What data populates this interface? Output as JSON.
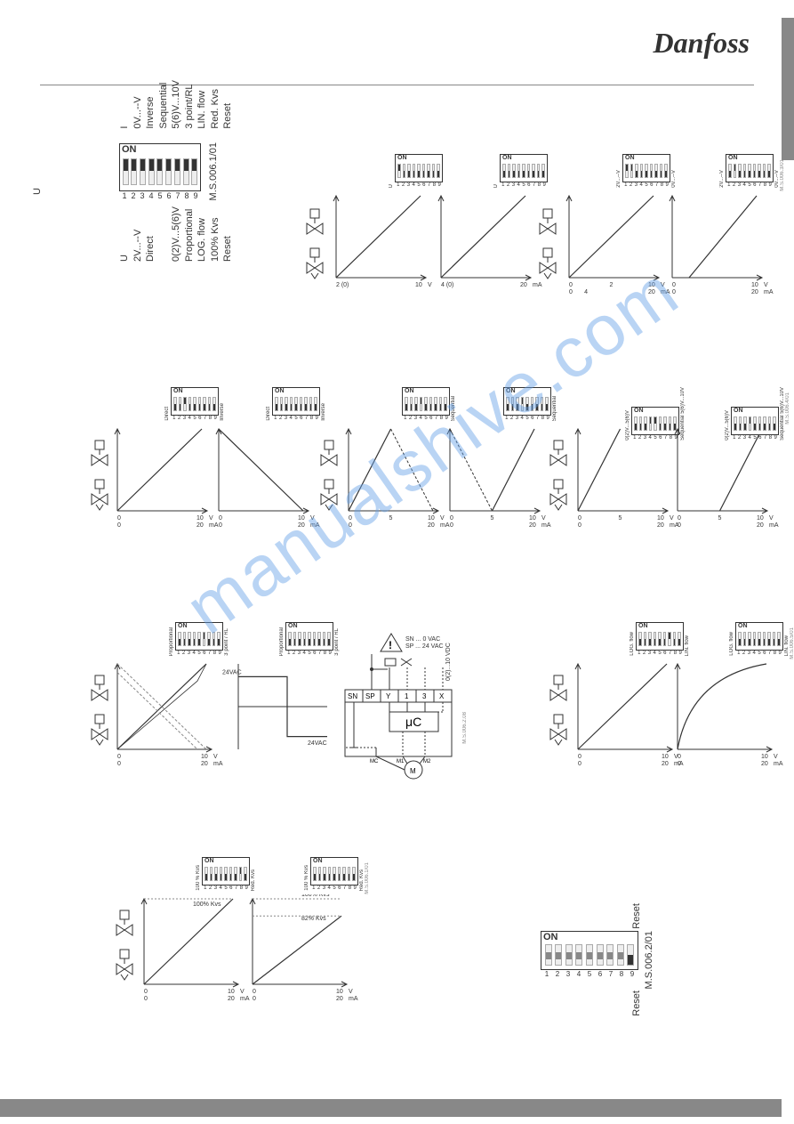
{
  "brand": "Danfoss",
  "watermark": "manualshive.com",
  "main_dip": {
    "on_label": "ON",
    "code": "M.S.006.1/01",
    "numbers": [
      "1",
      "2",
      "3",
      "4",
      "5",
      "6",
      "7",
      "8",
      "9"
    ],
    "states": [
      "on",
      "on",
      "on",
      "on",
      "on",
      "on",
      "on",
      "on",
      "on"
    ],
    "left_labels": [
      "U",
      "2V...--V",
      "Direct",
      "0(2)V...5(6)V",
      "Proportional",
      "LOG. flow",
      "100% Kvs",
      "Reset"
    ],
    "right_labels": [
      "I",
      "0V...--V",
      "Inverse",
      "Sequential",
      "5(6)V...10V",
      "3 point/RL",
      "LIN. flow",
      "Red. Kvs",
      "Reset"
    ]
  },
  "reset_dip": {
    "on_label": "ON",
    "code": "M.S.006.2/01",
    "numbers": [
      "1",
      "2",
      "3",
      "4",
      "5",
      "6",
      "7",
      "8",
      "9"
    ],
    "states": [
      "mid",
      "mid",
      "mid",
      "mid",
      "mid",
      "mid",
      "mid",
      "mid",
      "off"
    ],
    "top_label": "Reset",
    "bottom_label": "Reset"
  },
  "colors": {
    "axis": "#333333",
    "line": "#333333",
    "dash": "#888888",
    "bg": "#ffffff",
    "watermark": "rgba(100,160,230,0.45)"
  },
  "row1": {
    "charts": [
      {
        "sw": [
          1,
          0,
          0,
          0,
          0,
          0,
          0,
          0,
          0
        ],
        "left": "U",
        "right": "",
        "xmin": "2 (0)",
        "xmax": "10",
        "unit1": "V",
        "unit2": "",
        "line": [
          [
            0,
            100
          ],
          [
            100,
            0
          ]
        ]
      },
      {
        "sw": [
          0,
          0,
          0,
          0,
          0,
          0,
          0,
          0,
          0
        ],
        "left": "U",
        "right": "",
        "xmin": "4 (0)",
        "xmax": "20",
        "unit1": "mA",
        "unit2": "",
        "line": [
          [
            0,
            100
          ],
          [
            100,
            0
          ]
        ]
      },
      {
        "sw": [
          1,
          1,
          0,
          0,
          0,
          0,
          0,
          0,
          0
        ],
        "left": "2V...--V",
        "right": "0V...--V",
        "xmin": "0",
        "xmin2": "0",
        "xmid": "2",
        "xmid2": "4",
        "xmax": "10",
        "xmax2": "20",
        "unit1": "V",
        "unit2": "mA",
        "line": [
          [
            0,
            100
          ],
          [
            100,
            0
          ]
        ]
      },
      {
        "sw": [
          0,
          1,
          0,
          0,
          0,
          0,
          0,
          0,
          0
        ],
        "left": "2V...--V",
        "right": "0V...--V",
        "xmin": "0",
        "xmin2": "0",
        "xmid": "",
        "xmax": "10",
        "xmax2": "20",
        "unit1": "V",
        "unit2": "mA",
        "line": [
          [
            20,
            100
          ],
          [
            100,
            0
          ]
        ]
      }
    ],
    "code": "M.S.006.3/01"
  },
  "row2": {
    "charts": [
      {
        "sw": [
          0,
          0,
          1,
          0,
          0,
          0,
          0,
          0,
          0
        ],
        "left": "Direct",
        "right": "Inverse",
        "xmin": "0",
        "xmin2": "0",
        "xmax": "10",
        "xmax2": "20",
        "unit1": "V",
        "unit2": "mA",
        "line": [
          [
            0,
            100
          ],
          [
            100,
            0
          ]
        ]
      },
      {
        "sw": [
          0,
          0,
          0,
          0,
          0,
          0,
          0,
          0,
          0
        ],
        "left": "Direct",
        "right": "Inverse",
        "xmin": "0",
        "xmin2": "0",
        "xmax": "10",
        "xmax2": "20",
        "unit1": "V",
        "unit2": "mA",
        "line": [
          [
            0,
            0
          ],
          [
            100,
            100
          ]
        ]
      },
      {
        "sw": [
          0,
          0,
          0,
          1,
          0,
          0,
          0,
          0,
          0
        ],
        "left": "",
        "right": "Sequential",
        "xmin": "0",
        "xmin2": "0",
        "xmid": "5",
        "xmax": "10",
        "xmax2": "20",
        "unit1": "V",
        "unit2": "mA",
        "line": [
          [
            0,
            100
          ],
          [
            50,
            0
          ]
        ],
        "dash": [
          [
            50,
            0
          ],
          [
            100,
            100
          ]
        ]
      },
      {
        "sw": [
          0,
          0,
          0,
          1,
          0,
          0,
          0,
          0,
          0
        ],
        "left": "",
        "right": "Sequential",
        "xmin": "0",
        "xmin2": "0",
        "xmid": "5",
        "xmax": "10",
        "xmax2": "20",
        "unit1": "V",
        "unit2": "mA",
        "line": [
          [
            50,
            100
          ],
          [
            100,
            0
          ]
        ],
        "dash": [
          [
            0,
            0
          ],
          [
            50,
            100
          ]
        ]
      },
      {
        "sw": [
          0,
          0,
          0,
          1,
          1,
          0,
          0,
          0,
          0
        ],
        "left": "0(2)V...5(6)V",
        "right": "Sequential 5(6)V...10V",
        "xmin": "0",
        "xmin2": "0",
        "xmid": "5",
        "xmax": "10",
        "xmax2": "20",
        "unit1": "V",
        "unit2": "mA",
        "line": [
          [
            0,
            100
          ],
          [
            50,
            0
          ]
        ]
      },
      {
        "sw": [
          0,
          0,
          0,
          1,
          0,
          0,
          0,
          0,
          0
        ],
        "left": "0(2)V...5(6)V",
        "right": "Sequential 5(6)V...10V",
        "xmin": "0",
        "xmin2": "0",
        "xmid": "5",
        "xmax": "10",
        "xmax2": "20",
        "unit1": "V",
        "unit2": "mA",
        "line": [
          [
            50,
            100
          ],
          [
            100,
            0
          ]
        ]
      }
    ],
    "code": "M.S.006.4/01"
  },
  "row3": {
    "charts": [
      {
        "sw": [
          0,
          0,
          0,
          0,
          0,
          1,
          0,
          0,
          0
        ],
        "left": "Proportional",
        "right": "3 point / RL",
        "xmin": "0",
        "xmin2": "0",
        "xmax": "10",
        "xmax2": "20",
        "unit1": "V",
        "unit2": "mA",
        "special": "prop"
      },
      {
        "sw": [
          0,
          0,
          0,
          0,
          0,
          0,
          0,
          0,
          0
        ],
        "left": "Proportional",
        "right": "3 point / RL",
        "xmin": "",
        "xmax": "",
        "unit1": "",
        "unit2": "",
        "special": "3pt",
        "v24a": "24VAC",
        "v24b": "24VAC"
      },
      {
        "sw": [
          0,
          0,
          0,
          0,
          0,
          0,
          1,
          0,
          0
        ],
        "left": "LOG. flow",
        "right": "LIN. flow",
        "xmin": "0",
        "xmin2": "0",
        "xmax": "10",
        "xmax2": "20",
        "unit1": "V",
        "unit2": "mA",
        "line": [
          [
            0,
            100
          ],
          [
            100,
            0
          ]
        ]
      },
      {
        "sw": [
          0,
          0,
          0,
          0,
          0,
          0,
          0,
          0,
          0
        ],
        "left": "LOG. flow",
        "right": "LIN. flow",
        "xmin": "0",
        "xmin2": "0",
        "xmax": "10",
        "xmax2": "20",
        "unit1": "V",
        "unit2": "mA",
        "special": "log"
      }
    ],
    "circuit": {
      "sn_label": "SN",
      "sp_label": "SP",
      "y": "Y",
      "t1": "1",
      "t3": "3",
      "x": "X",
      "uc": "μC",
      "mc": "MC",
      "m1": "M1",
      "m2": "M2",
      "note1": "SN ... 0 VAC",
      "note2": "SP ... 24 VAC",
      "code": "M.S.006.2.08"
    },
    "code": "M.S.006.5/01"
  },
  "row4": {
    "charts": [
      {
        "sw": [
          0,
          0,
          0,
          0,
          0,
          0,
          0,
          1,
          0
        ],
        "left": "100 % Kvs",
        "right": "Red. Kvs",
        "xmin": "0",
        "xmin2": "0",
        "xmax": "10",
        "xmax2": "20",
        "unit1": "V",
        "unit2": "mA",
        "line": [
          [
            0,
            100
          ],
          [
            100,
            0
          ]
        ],
        "annot": "100% Kvs"
      },
      {
        "sw": [
          0,
          0,
          0,
          0,
          0,
          0,
          0,
          0,
          0
        ],
        "left": "100 % Kvs",
        "right": "Red. Kvs",
        "xmin": "0",
        "xmin2": "0",
        "xmax": "10",
        "xmax2": "20",
        "unit1": "V",
        "unit2": "mA",
        "line": [
          [
            0,
            100
          ],
          [
            100,
            20
          ]
        ],
        "annot": "82% Kvs",
        "annot2": "100% Kvs"
      }
    ],
    "code": "M.S.006.1/01"
  }
}
